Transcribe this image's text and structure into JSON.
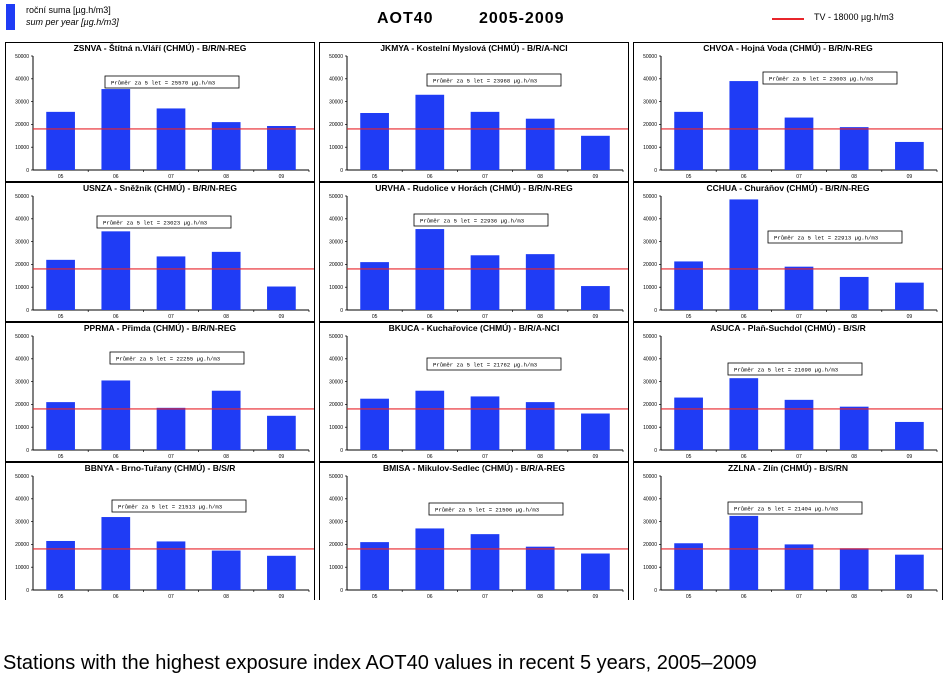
{
  "legend": {
    "bar_label": "roční suma [µg.h/m3]",
    "bar_label_en": "sum per year [µg.h/m3]",
    "bar_color": "#1f3cf5",
    "line_label": "TV - 18000 µg.h/m3",
    "line_color": "#e8252b"
  },
  "header": {
    "title": "AOT40",
    "years": "2005-2009"
  },
  "caption": "Stations with the highest exposure index AOT40 values in recent 5 years, 2005–2009",
  "chart_data": [
    {
      "type": "bar",
      "title": "ZSNVA - Štítná n.Vláří (CHMÚ) - B/R/N-REG",
      "categories": [
        "05",
        "06",
        "07",
        "08",
        "09"
      ],
      "values": [
        25500,
        35500,
        27000,
        21000,
        19300
      ],
      "threshold": 18000,
      "ylim": [
        0,
        50000
      ],
      "yticks": [
        0,
        10000,
        20000,
        30000,
        40000,
        50000
      ],
      "annotation": "Průměr za 5 let = 25570 µg.h/m3"
    },
    {
      "type": "bar",
      "title": "JKMYA - Kostelní Myslová (CHMÚ) - B/R/A-NCI",
      "categories": [
        "05",
        "06",
        "07",
        "08",
        "09"
      ],
      "values": [
        25000,
        33000,
        25500,
        22500,
        15000
      ],
      "threshold": 18000,
      "ylim": [
        0,
        50000
      ],
      "yticks": [
        0,
        10000,
        20000,
        30000,
        40000,
        50000
      ],
      "annotation": "Průměr za 5 let = 23968 µg.h/m3"
    },
    {
      "type": "bar",
      "title": "CHVOA - Hojná Voda (CHMÚ) - B/R/N-REG",
      "categories": [
        "05",
        "06",
        "07",
        "08",
        "09"
      ],
      "values": [
        25500,
        39000,
        23000,
        18800,
        12300
      ],
      "threshold": 18000,
      "ylim": [
        0,
        50000
      ],
      "yticks": [
        0,
        10000,
        20000,
        30000,
        40000,
        50000
      ],
      "annotation": "Průměr za 5 let = 23603 µg.h/m3"
    },
    {
      "type": "bar",
      "title": "USNZA - Sněžník (CHMÚ) - B/R/N-REG",
      "categories": [
        "05",
        "06",
        "07",
        "08",
        "09"
      ],
      "values": [
        22000,
        34500,
        23500,
        25500,
        10300
      ],
      "threshold": 18000,
      "ylim": [
        0,
        50000
      ],
      "yticks": [
        0,
        10000,
        20000,
        30000,
        40000,
        50000
      ],
      "annotation": "Průměr za 5 let = 23023 µg.h/m3"
    },
    {
      "type": "bar",
      "title": "URVHA - Rudolice v Horách (CHMÚ) - B/R/N-REG",
      "categories": [
        "05",
        "06",
        "07",
        "08",
        "09"
      ],
      "values": [
        21000,
        35500,
        24000,
        24500,
        10500
      ],
      "threshold": 18000,
      "ylim": [
        0,
        50000
      ],
      "yticks": [
        0,
        10000,
        20000,
        30000,
        40000,
        50000
      ],
      "annotation": "Průměr za 5 let = 22936 µg.h/m3"
    },
    {
      "type": "bar",
      "title": "CCHUA - Churáňov (CHMÚ) - B/R/N-REG",
      "categories": [
        "05",
        "06",
        "07",
        "08",
        "09"
      ],
      "values": [
        21300,
        48500,
        19000,
        14500,
        12000
      ],
      "threshold": 18000,
      "ylim": [
        0,
        50000
      ],
      "yticks": [
        0,
        10000,
        20000,
        30000,
        40000,
        50000
      ],
      "annotation": "Průměr za 5 let = 22913 µg.h/m3"
    },
    {
      "type": "bar",
      "title": "PPRMA - Přimda (CHMÚ) - B/R/N-REG",
      "categories": [
        "05",
        "06",
        "07",
        "08",
        "09"
      ],
      "values": [
        21000,
        30500,
        18500,
        26000,
        15000
      ],
      "threshold": 18000,
      "ylim": [
        0,
        50000
      ],
      "yticks": [
        0,
        10000,
        20000,
        30000,
        40000,
        50000
      ],
      "annotation": "Průměr za 5 let = 22255 µg.h/m3"
    },
    {
      "type": "bar",
      "title": "BKUCA - Kuchařovice (CHMÚ) - B/R/A-NCI",
      "categories": [
        "05",
        "06",
        "07",
        "08",
        "09"
      ],
      "values": [
        22500,
        26000,
        23500,
        21000,
        16000
      ],
      "threshold": 18000,
      "ylim": [
        0,
        50000
      ],
      "yticks": [
        0,
        10000,
        20000,
        30000,
        40000,
        50000
      ],
      "annotation": "Průměr za 5 let = 21762 µg.h/m3"
    },
    {
      "type": "bar",
      "title": "ASUCA - Plaň-Suchdol (CHMÚ) - B/S/R",
      "categories": [
        "05",
        "06",
        "07",
        "08",
        "09"
      ],
      "values": [
        23000,
        31500,
        22000,
        19000,
        12300
      ],
      "threshold": 18000,
      "ylim": [
        0,
        50000
      ],
      "yticks": [
        0,
        10000,
        20000,
        30000,
        40000,
        50000
      ],
      "annotation": "Průměr za 5 let = 21690 µg.h/m3"
    },
    {
      "type": "bar",
      "title": "BBNYA - Brno-Tuřany (CHMÚ) - B/S/R",
      "categories": [
        "05",
        "06",
        "07",
        "08",
        "09"
      ],
      "values": [
        21500,
        32000,
        21300,
        17300,
        15000
      ],
      "threshold": 18000,
      "ylim": [
        0,
        50000
      ],
      "yticks": [
        0,
        10000,
        20000,
        30000,
        40000,
        50000
      ],
      "annotation": "Průměr za 5 let = 21513 µg.h/m3"
    },
    {
      "type": "bar",
      "title": "BMISA - Mikulov-Sedlec (CHMÚ) - B/R/A-REG",
      "categories": [
        "05",
        "06",
        "07",
        "08",
        "09"
      ],
      "values": [
        21000,
        27000,
        24500,
        19000,
        16000
      ],
      "threshold": 18000,
      "ylim": [
        0,
        50000
      ],
      "yticks": [
        0,
        10000,
        20000,
        30000,
        40000,
        50000
      ],
      "annotation": "Průměr za 5 let = 21506 µg.h/m3"
    },
    {
      "type": "bar",
      "title": "ZZLNA - Zlín (CHMÚ) - B/S/RN",
      "categories": [
        "05",
        "06",
        "07",
        "08",
        "09"
      ],
      "values": [
        20500,
        32500,
        20000,
        18300,
        15500
      ],
      "threshold": 18000,
      "ylim": [
        0,
        50000
      ],
      "yticks": [
        0,
        10000,
        20000,
        30000,
        40000,
        50000
      ],
      "annotation": "Průměr za 5 let = 21404 µg.h/m3"
    }
  ]
}
